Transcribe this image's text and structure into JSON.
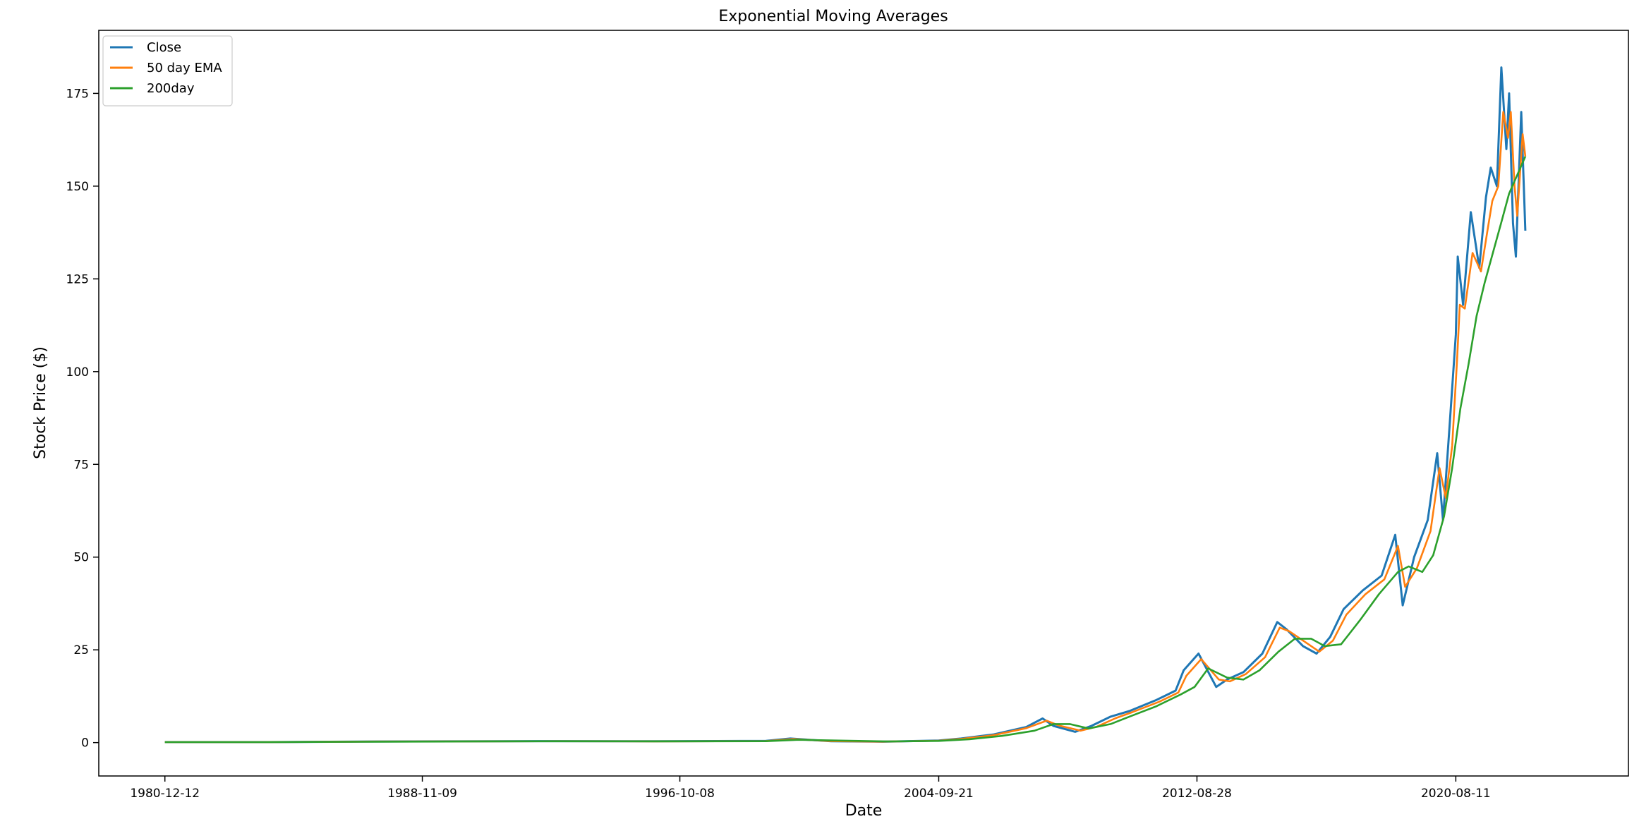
{
  "chart_data": {
    "type": "line",
    "title": "Exponential Moving Averages",
    "xlabel": "Date",
    "ylabel": "Stock Price ($)",
    "x_ticks": [
      "1980-12-12",
      "1988-11-09",
      "1996-10-08",
      "2004-09-21",
      "2012-08-28",
      "2020-08-11"
    ],
    "y_ticks": [
      0,
      25,
      50,
      75,
      100,
      125,
      150,
      175
    ],
    "ylim": [
      -9,
      192
    ],
    "xlim": [
      "1978-12-01",
      "2025-11-30"
    ],
    "grid": false,
    "legend_position": "top-left",
    "series": [
      {
        "name": "Close",
        "color": "#1f77b4",
        "x": [
          "1980-12-12",
          "1984-01-01",
          "1987-06-01",
          "1990-01-01",
          "1993-01-01",
          "1996-01-01",
          "1999-06-01",
          "2000-03-01",
          "2001-06-01",
          "2003-01-01",
          "2004-09-21",
          "2005-06-01",
          "2006-06-01",
          "2007-06-01",
          "2007-12-01",
          "2008-04-01",
          "2008-12-01",
          "2009-06-01",
          "2010-01-01",
          "2010-08-01",
          "2011-06-01",
          "2012-01-01",
          "2012-04-01",
          "2012-09-15",
          "2013-04-01",
          "2013-08-01",
          "2014-02-01",
          "2014-09-01",
          "2015-02-15",
          "2015-06-01",
          "2015-12-01",
          "2016-05-01",
          "2016-10-01",
          "2017-03-01",
          "2017-10-01",
          "2018-05-01",
          "2018-10-01",
          "2018-12-24",
          "2019-05-01",
          "2019-10-01",
          "2020-01-15",
          "2020-03-20",
          "2020-06-01",
          "2020-08-11",
          "2020-09-02",
          "2020-11-01",
          "2021-01-26",
          "2021-05-01",
          "2021-07-15",
          "2021-09-07",
          "2021-11-15",
          "2022-01-04",
          "2022-03-01",
          "2022-04-01",
          "2022-05-15",
          "2022-06-16",
          "2022-08-15",
          "2022-09-30"
        ],
        "y": [
          0.13,
          0.12,
          0.3,
          0.33,
          0.4,
          0.35,
          0.45,
          1.1,
          0.35,
          0.25,
          0.55,
          1.1,
          2.2,
          4.2,
          6.5,
          4.5,
          2.9,
          4.5,
          7.0,
          8.5,
          11.5,
          14.0,
          19.5,
          24.0,
          15.0,
          17.0,
          19.0,
          24.0,
          32.5,
          30.5,
          26.0,
          24.0,
          28.5,
          36.0,
          41.0,
          45.0,
          56.0,
          37.0,
          50.0,
          60.0,
          78.0,
          60.0,
          85.0,
          110.0,
          131.0,
          118.0,
          143.0,
          128.0,
          147.0,
          155.0,
          150.0,
          182.0,
          160.0,
          175.0,
          140.0,
          131.0,
          170.0,
          138.0
        ]
      },
      {
        "name": "50 day EMA",
        "color": "#ff7f0e",
        "x": [
          "1980-12-12",
          "1984-01-01",
          "1987-06-01",
          "1990-01-01",
          "1993-01-01",
          "1996-01-01",
          "1999-06-01",
          "2000-04-01",
          "2001-06-01",
          "2003-01-01",
          "2004-09-21",
          "2005-06-01",
          "2006-06-01",
          "2007-06-01",
          "2008-01-15",
          "2008-06-01",
          "2009-02-01",
          "2009-08-01",
          "2010-03-01",
          "2010-09-01",
          "2011-07-01",
          "2012-02-01",
          "2012-05-01",
          "2012-10-15",
          "2013-05-01",
          "2013-09-01",
          "2014-03-01",
          "2014-10-01",
          "2015-03-15",
          "2015-07-01",
          "2016-01-01",
          "2016-06-01",
          "2016-11-01",
          "2017-04-01",
          "2017-11-01",
          "2018-06-01",
          "2018-11-01",
          "2019-01-20",
          "2019-06-01",
          "2019-11-01",
          "2020-02-10",
          "2020-04-20",
          "2020-07-01",
          "2020-08-25",
          "2020-09-25",
          "2020-11-20",
          "2021-02-15",
          "2021-05-20",
          "2021-08-01",
          "2021-09-25",
          "2021-12-01",
          "2022-01-25",
          "2022-03-20",
          "2022-04-20",
          "2022-06-01",
          "2022-07-01",
          "2022-08-31",
          "2022-09-30"
        ],
        "y": [
          0.13,
          0.12,
          0.28,
          0.32,
          0.38,
          0.34,
          0.42,
          0.95,
          0.4,
          0.26,
          0.5,
          1.0,
          2.0,
          3.9,
          5.9,
          4.6,
          3.2,
          4.3,
          6.6,
          8.2,
          11.0,
          13.5,
          18.0,
          22.5,
          17.0,
          16.5,
          18.5,
          23.0,
          31.0,
          30.0,
          27.0,
          24.5,
          27.5,
          34.5,
          40.0,
          44.0,
          53.0,
          42.0,
          47.0,
          57.0,
          74.0,
          66.0,
          80.0,
          103.0,
          118.0,
          117.0,
          132.0,
          127.0,
          138.0,
          146.0,
          150.0,
          170.0,
          163.0,
          170.0,
          150.0,
          142.0,
          164.0,
          158.0
        ]
      },
      {
        "name": "200day",
        "color": "#2ca02c",
        "x": [
          "1980-12-12",
          "1984-01-01",
          "1987-06-01",
          "1990-01-01",
          "1993-01-01",
          "1996-01-01",
          "1999-06-01",
          "2000-06-01",
          "2001-09-01",
          "2003-03-01",
          "2004-09-21",
          "2005-09-01",
          "2006-09-01",
          "2007-09-01",
          "2008-04-01",
          "2008-10-01",
          "2009-05-01",
          "2010-01-01",
          "2010-08-01",
          "2011-06-01",
          "2012-03-01",
          "2012-08-01",
          "2013-01-01",
          "2013-08-01",
          "2014-02-01",
          "2014-08-01",
          "2015-03-01",
          "2015-09-01",
          "2016-03-01",
          "2016-08-01",
          "2017-02-01",
          "2017-09-01",
          "2018-04-01",
          "2018-11-01",
          "2019-03-01",
          "2019-08-01",
          "2019-12-01",
          "2020-04-01",
          "2020-07-01",
          "2020-10-01",
          "2021-01-01",
          "2021-04-01",
          "2021-07-01",
          "2021-10-01",
          "2022-01-01",
          "2022-04-01",
          "2022-07-01",
          "2022-09-30"
        ],
        "y": [
          0.13,
          0.12,
          0.25,
          0.3,
          0.35,
          0.33,
          0.38,
          0.75,
          0.55,
          0.3,
          0.45,
          0.9,
          1.8,
          3.2,
          5.0,
          5.0,
          3.8,
          5.0,
          7.0,
          9.8,
          13.0,
          15.0,
          20.0,
          17.5,
          17.0,
          19.5,
          24.5,
          28.0,
          28.0,
          26.0,
          26.5,
          33.0,
          40.0,
          46.0,
          47.5,
          46.0,
          50.5,
          61.0,
          74.0,
          90.0,
          102.0,
          115.0,
          124.0,
          132.0,
          140.0,
          148.0,
          153.0,
          158.0
        ]
      }
    ]
  }
}
